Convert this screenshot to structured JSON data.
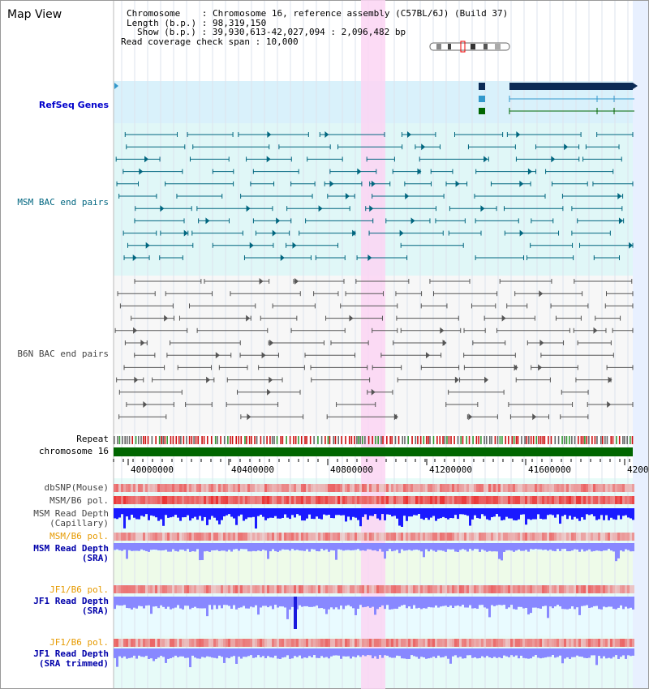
{
  "view_title": "Map View",
  "info": {
    "chromosome_label": "Chromosome",
    "chromosome_value": "Chromosome 16, reference assembly (C57BL/6J) (Build 37)",
    "length_label": "Length (b.p.)",
    "length_value": "98,319,150",
    "show_label": "Show (b.p.)",
    "show_value": "39,930,613-42,027,094 : 2,096,482 bp",
    "span_label": "Read coverage check span",
    "span_value": "10,000"
  },
  "tracks": {
    "refseq": "RefSeq Genes",
    "msm_bac": "MSM BAC end pairs",
    "b6n_bac": "B6N BAC end pairs",
    "repeat": "Repeat",
    "chromosome": "chromosome 16",
    "dbsnp": "dbSNP(Mouse)",
    "msm_b6_pol_1": "MSM/B6 pol.",
    "msm_depth_cap_1": "MSM Read Depth",
    "msm_depth_cap_2": "(Capillary)",
    "msm_b6_pol_2": "MSM/B6 pol.",
    "msm_depth_sra_1": "MSM Read Depth",
    "msm_depth_sra_2": "(SRA)",
    "jf1_b6_pol_1": "JF1/B6 pol.",
    "jf1_depth_sra_1": "JF1 Read Depth",
    "jf1_depth_sra_2": "(SRA)",
    "jf1_b6_pol_2": "JF1/B6 pol.",
    "jf1_depth_trim_1": "JF1 Read Depth",
    "jf1_depth_trim_2": "(SRA trimmed)"
  },
  "axis": {
    "ticks": [
      "40000000",
      "40400000",
      "40800000",
      "41200000",
      "41600000",
      "4200"
    ]
  },
  "colors": {
    "refseq_band": "#d9f1fb",
    "msm_band": "#e0f7f7",
    "highlight": "#fbd5f3",
    "chromosome_bar": "#006600",
    "depth_cap": "#1a1aff",
    "depth_sra": "#8888ff",
    "polymorphism": "#e84040",
    "msm_pair": "#00667f",
    "b6n_pair": "#555555"
  }
}
